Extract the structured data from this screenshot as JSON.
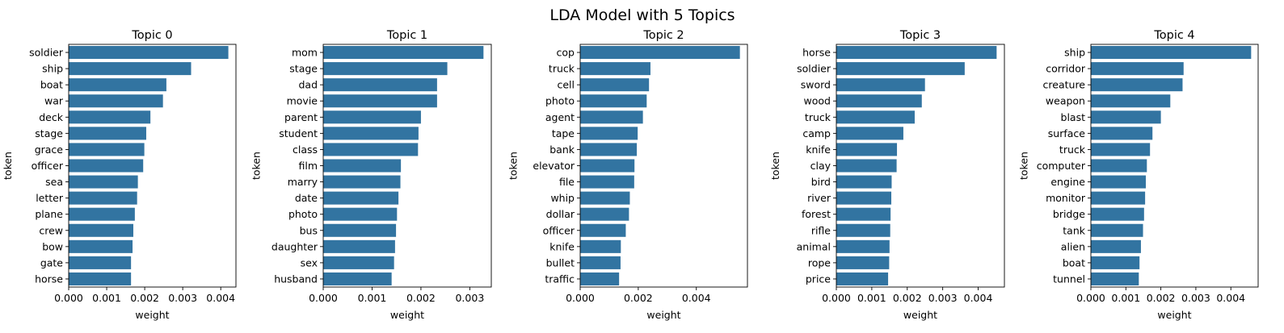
{
  "title": "LDA Model with 5 Topics",
  "colors": {
    "bar": "#3274a1",
    "axis": "#000000",
    "background": "#ffffff"
  },
  "chart_data": [
    {
      "type": "bar",
      "orientation": "horizontal",
      "title": "Topic 0",
      "xlabel": "weight",
      "ylabel": "token",
      "xlim": [
        0,
        0.0044
      ],
      "xticks": [
        "0.000",
        "0.001",
        "0.002",
        "0.003",
        "0.004"
      ],
      "xtick_values": [
        0,
        0.001,
        0.002,
        0.003,
        0.004
      ],
      "categories": [
        "soldier",
        "ship",
        "boat",
        "war",
        "deck",
        "stage",
        "grace",
        "officer",
        "sea",
        "letter",
        "plane",
        "crew",
        "bow",
        "gate",
        "horse"
      ],
      "values": [
        0.0042,
        0.00322,
        0.00257,
        0.00248,
        0.00215,
        0.00204,
        0.00199,
        0.00196,
        0.00182,
        0.0018,
        0.00174,
        0.0017,
        0.00168,
        0.00164,
        0.00164
      ]
    },
    {
      "type": "bar",
      "orientation": "horizontal",
      "title": "Topic 1",
      "xlabel": "weight",
      "ylabel": "token",
      "xlim": [
        0,
        0.00344
      ],
      "xticks": [
        "0.000",
        "0.001",
        "0.002",
        "0.003"
      ],
      "xtick_values": [
        0,
        0.001,
        0.002,
        0.003
      ],
      "categories": [
        "mom",
        "stage",
        "dad",
        "movie",
        "parent",
        "student",
        "class",
        "film",
        "marry",
        "date",
        "photo",
        "bus",
        "daughter",
        "sex",
        "husband"
      ],
      "values": [
        0.00328,
        0.00254,
        0.00233,
        0.00233,
        0.002,
        0.00195,
        0.00194,
        0.00159,
        0.00158,
        0.00154,
        0.00151,
        0.00149,
        0.00147,
        0.00145,
        0.0014
      ]
    },
    {
      "type": "bar",
      "orientation": "horizontal",
      "title": "Topic 2",
      "xlabel": "weight",
      "ylabel": "token",
      "xlim": [
        0,
        0.00576
      ],
      "xticks": [
        "0.000",
        "0.002",
        "0.004"
      ],
      "xtick_values": [
        0,
        0.002,
        0.004
      ],
      "categories": [
        "cop",
        "truck",
        "cell",
        "photo",
        "agent",
        "tape",
        "bank",
        "elevator",
        "file",
        "whip",
        "dollar",
        "officer",
        "knife",
        "bullet",
        "traffic"
      ],
      "values": [
        0.0055,
        0.00242,
        0.00237,
        0.00229,
        0.00216,
        0.00198,
        0.00195,
        0.00187,
        0.00186,
        0.00171,
        0.00168,
        0.00157,
        0.0014,
        0.00139,
        0.00134
      ]
    },
    {
      "type": "bar",
      "orientation": "horizontal",
      "title": "Topic 3",
      "xlabel": "weight",
      "ylabel": "token",
      "xlim": [
        0,
        0.00474
      ],
      "xticks": [
        "0.000",
        "0.001",
        "0.002",
        "0.003",
        "0.004"
      ],
      "xtick_values": [
        0,
        0.001,
        0.002,
        0.003,
        0.004
      ],
      "categories": [
        "horse",
        "soldier",
        "sword",
        "wood",
        "truck",
        "camp",
        "knife",
        "clay",
        "bird",
        "river",
        "forest",
        "rifle",
        "animal",
        "rope",
        "price"
      ],
      "values": [
        0.00452,
        0.00362,
        0.0025,
        0.00241,
        0.00221,
        0.00189,
        0.00171,
        0.0017,
        0.00156,
        0.00155,
        0.00153,
        0.00152,
        0.0015,
        0.00149,
        0.00146
      ]
    },
    {
      "type": "bar",
      "orientation": "horizontal",
      "title": "Topic 4",
      "xlabel": "weight",
      "ylabel": "token",
      "xlim": [
        0,
        0.00478
      ],
      "xticks": [
        "0.000",
        "0.001",
        "0.002",
        "0.003",
        "0.004"
      ],
      "xtick_values": [
        0,
        0.001,
        0.002,
        0.003,
        0.004
      ],
      "categories": [
        "ship",
        "corridor",
        "creature",
        "weapon",
        "blast",
        "surface",
        "truck",
        "computer",
        "engine",
        "monitor",
        "bridge",
        "tank",
        "alien",
        "boat",
        "tunnel"
      ],
      "values": [
        0.00458,
        0.00265,
        0.00262,
        0.00227,
        0.002,
        0.00176,
        0.00169,
        0.0016,
        0.00157,
        0.00155,
        0.00152,
        0.00149,
        0.00143,
        0.00139,
        0.00137
      ]
    }
  ]
}
